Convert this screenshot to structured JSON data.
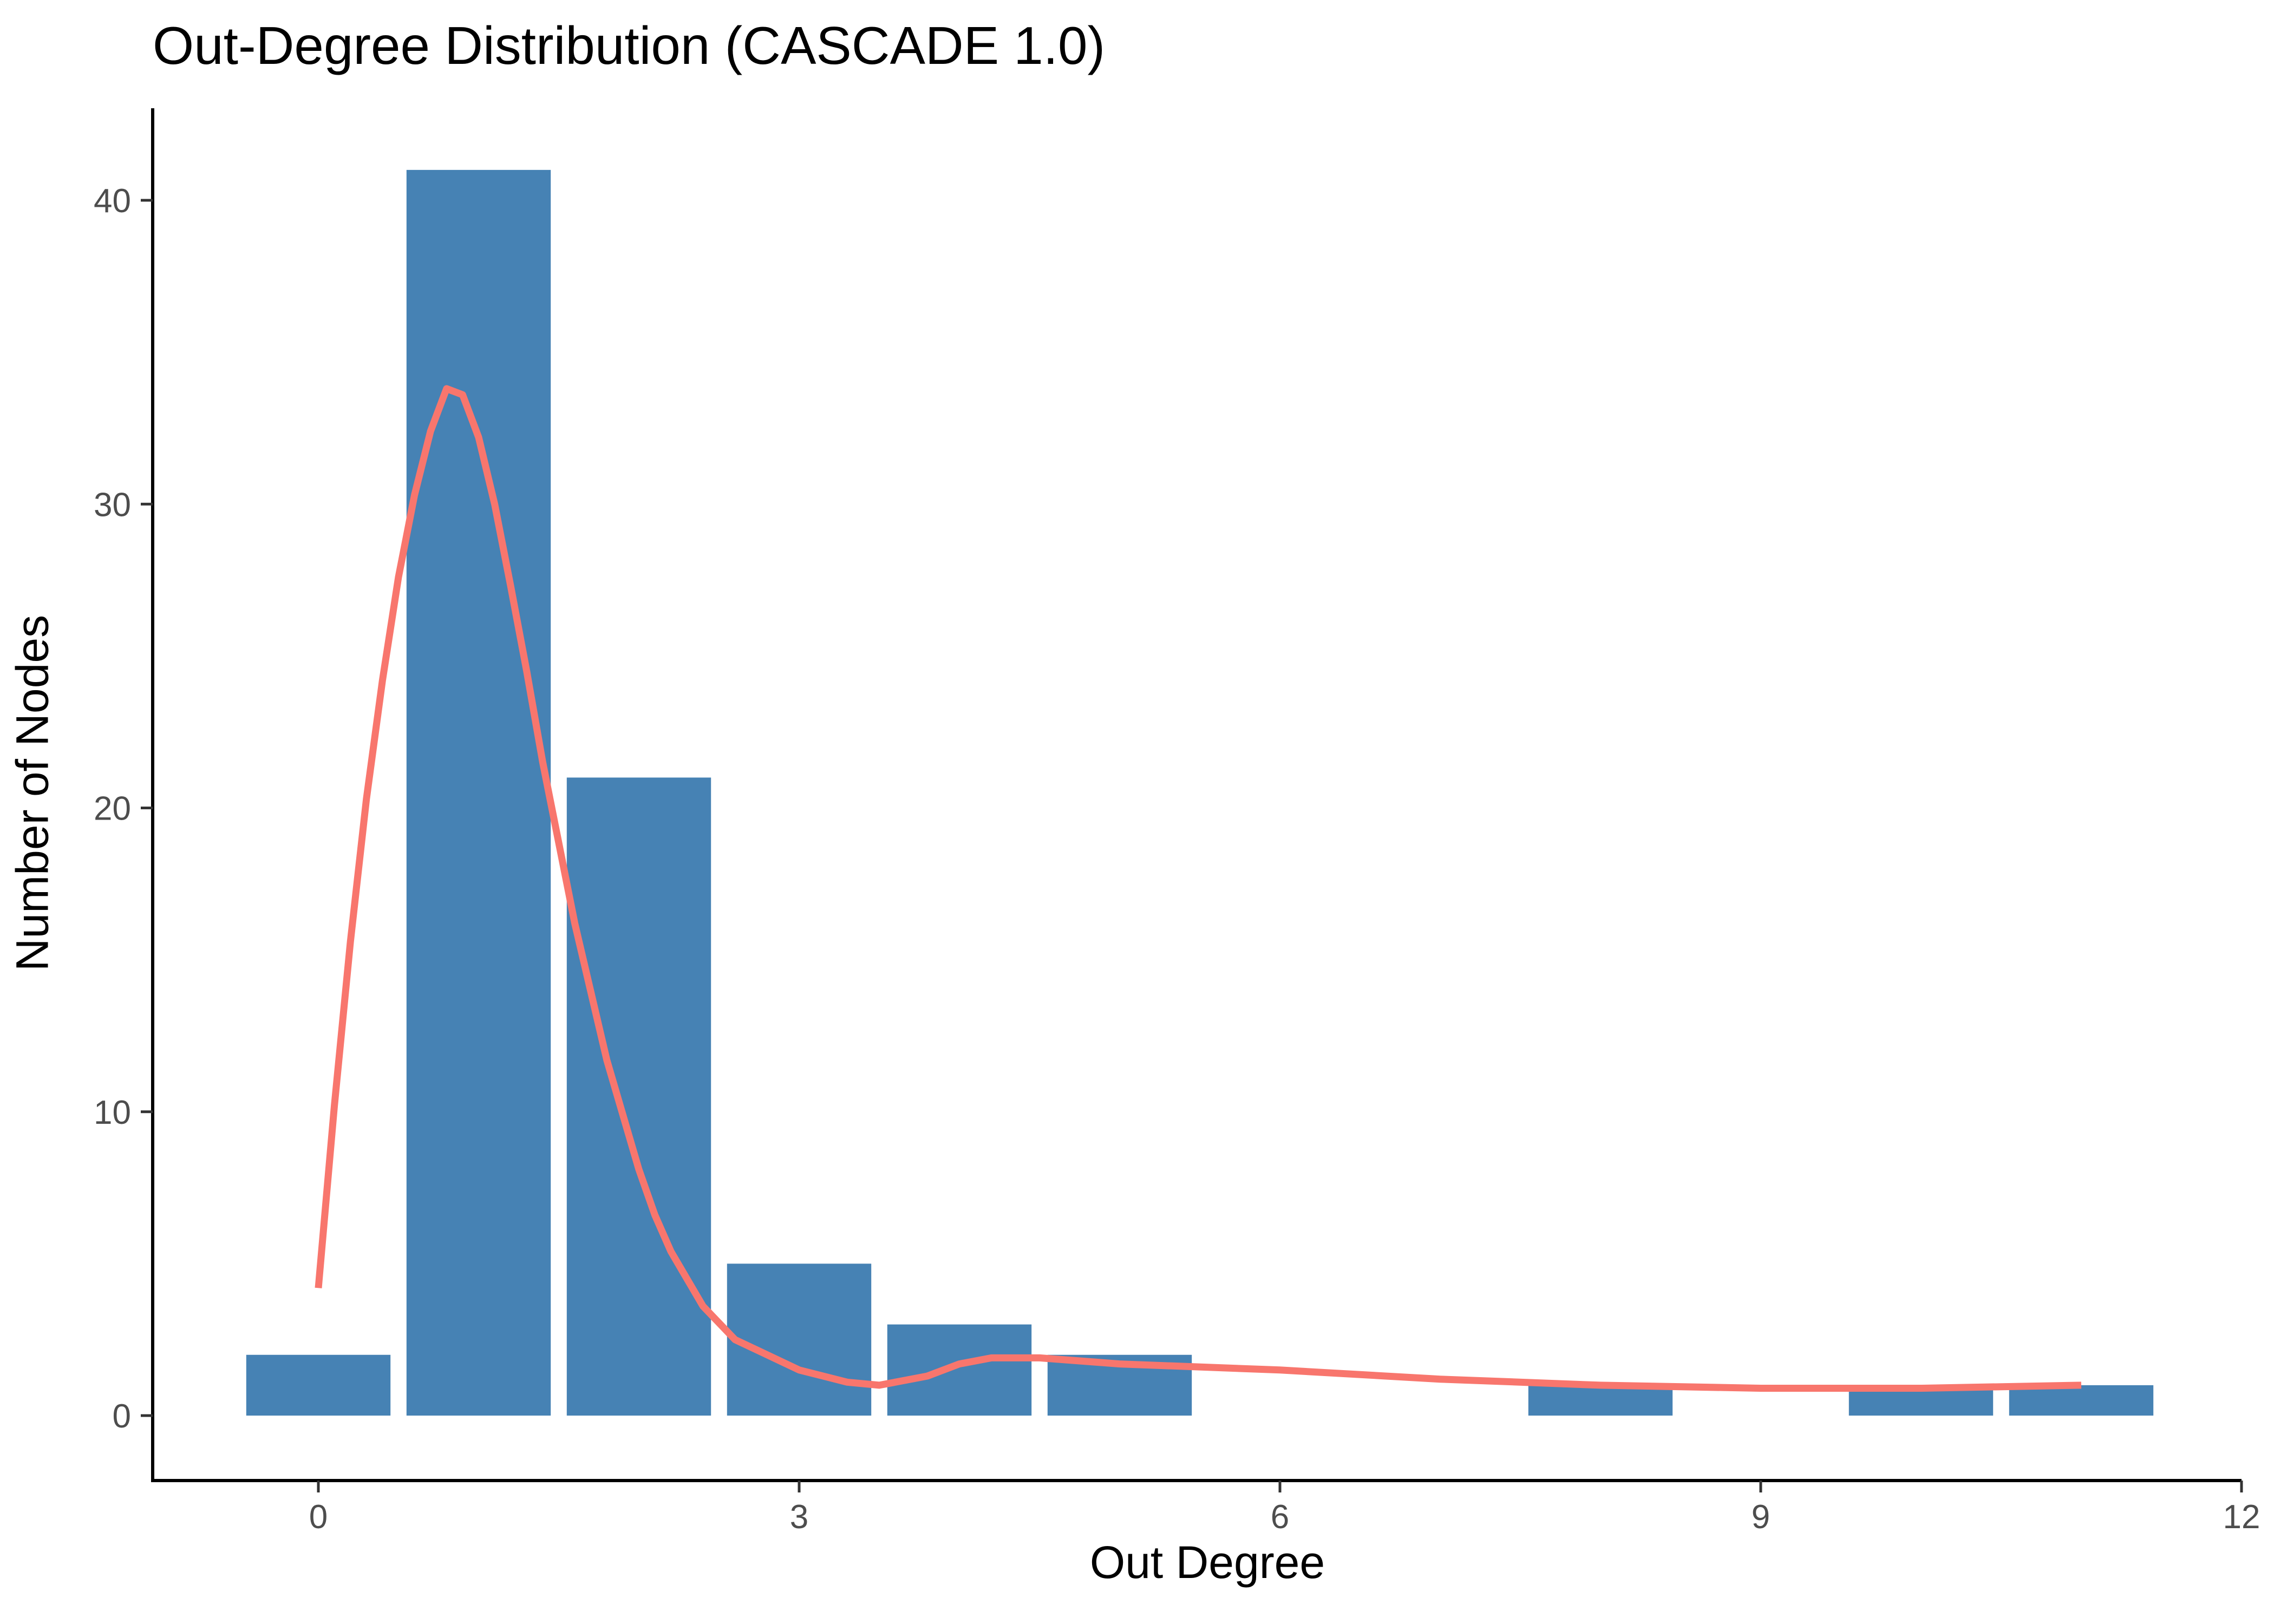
{
  "chart_data": {
    "type": "bar",
    "title": "Out-Degree Distribution (CASCADE 1.0)",
    "xlabel": "Out Degree",
    "ylabel": "Number of Nodes",
    "xlim": [
      -0.5,
      12
    ],
    "ylim": [
      -2,
      43
    ],
    "x_ticks": [
      0,
      3,
      6,
      9,
      12
    ],
    "y_ticks": [
      0,
      10,
      20,
      30,
      40
    ],
    "grid": false,
    "bar_color": "#4682b4",
    "line_color": "#f8766d",
    "bars": [
      {
        "x": 0,
        "value": 2
      },
      {
        "x": 1,
        "value": 41
      },
      {
        "x": 2,
        "value": 21
      },
      {
        "x": 3,
        "value": 5
      },
      {
        "x": 4,
        "value": 3
      },
      {
        "x": 5,
        "value": 2
      },
      {
        "x": 8,
        "value": 1
      },
      {
        "x": 10,
        "value": 1
      },
      {
        "x": 11,
        "value": 1
      }
    ],
    "density_curve": [
      [
        0,
        4.2
      ],
      [
        0.1,
        10.2
      ],
      [
        0.2,
        15.6
      ],
      [
        0.3,
        20.3
      ],
      [
        0.4,
        24.2
      ],
      [
        0.5,
        27.6
      ],
      [
        0.6,
        30.3
      ],
      [
        0.7,
        32.4
      ],
      [
        0.8,
        33.8
      ],
      [
        0.9,
        33.6
      ],
      [
        1.0,
        32.2
      ],
      [
        1.1,
        30.0
      ],
      [
        1.2,
        27.3
      ],
      [
        1.3,
        24.5
      ],
      [
        1.4,
        21.5
      ],
      [
        1.6,
        16.2
      ],
      [
        1.8,
        11.7
      ],
      [
        2.0,
        8.1
      ],
      [
        2.1,
        6.6
      ],
      [
        2.2,
        5.4
      ],
      [
        2.4,
        3.6
      ],
      [
        2.6,
        2.5
      ],
      [
        3.0,
        1.5
      ],
      [
        3.3,
        1.1
      ],
      [
        3.5,
        1.0
      ],
      [
        3.8,
        1.3
      ],
      [
        4.0,
        1.7
      ],
      [
        4.2,
        1.9
      ],
      [
        4.5,
        1.9
      ],
      [
        5.0,
        1.7
      ],
      [
        6.0,
        1.5
      ],
      [
        7.0,
        1.2
      ],
      [
        8.0,
        1.0
      ],
      [
        9.0,
        0.9
      ],
      [
        10.0,
        0.9
      ],
      [
        11.0,
        1.0
      ]
    ]
  }
}
